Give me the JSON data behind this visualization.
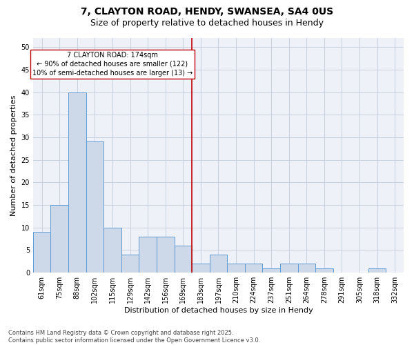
{
  "title_line1": "7, CLAYTON ROAD, HENDY, SWANSEA, SA4 0US",
  "title_line2": "Size of property relative to detached houses in Hendy",
  "xlabel": "Distribution of detached houses by size in Hendy",
  "ylabel": "Number of detached properties",
  "footer": "Contains HM Land Registry data © Crown copyright and database right 2025.\nContains public sector information licensed under the Open Government Licence v3.0.",
  "bar_labels": [
    "61sqm",
    "75sqm",
    "88sqm",
    "102sqm",
    "115sqm",
    "129sqm",
    "142sqm",
    "156sqm",
    "169sqm",
    "183sqm",
    "197sqm",
    "210sqm",
    "224sqm",
    "237sqm",
    "251sqm",
    "264sqm",
    "278sqm",
    "291sqm",
    "305sqm",
    "318sqm",
    "332sqm"
  ],
  "bar_values": [
    9,
    15,
    40,
    29,
    10,
    4,
    8,
    8,
    6,
    2,
    4,
    2,
    2,
    1,
    2,
    2,
    1,
    0,
    0,
    1,
    0
  ],
  "bar_color": "#cdd9e8",
  "bar_edge_color": "#5b9bd5",
  "vline_x": 8.5,
  "vline_color": "#c00000",
  "annotation_text": "7 CLAYTON ROAD: 174sqm\n← 90% of detached houses are smaller (122)\n10% of semi-detached houses are larger (13) →",
  "ylim": [
    0,
    52
  ],
  "yticks": [
    0,
    5,
    10,
    15,
    20,
    25,
    30,
    35,
    40,
    45,
    50
  ],
  "grid_color": "#c8d0dc",
  "bg_color": "#eef2f8",
  "title_fontsize": 10,
  "subtitle_fontsize": 9,
  "axis_label_fontsize": 8,
  "tick_fontsize": 7,
  "footer_fontsize": 6,
  "annotation_fontsize": 7
}
